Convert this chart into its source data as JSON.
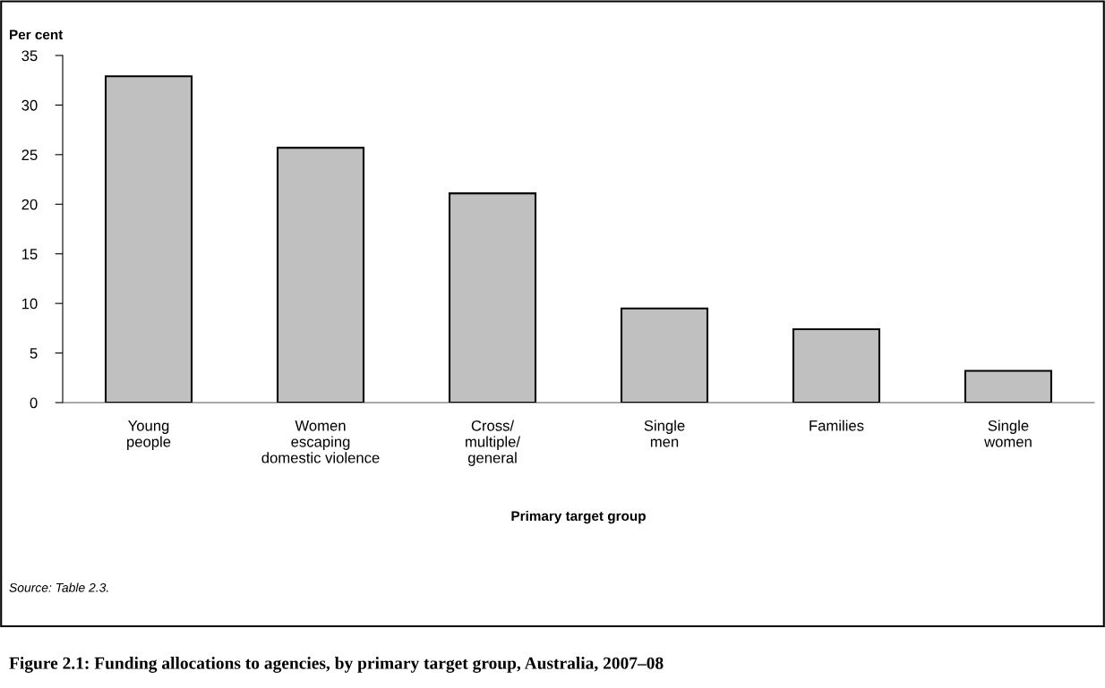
{
  "chart_data": {
    "type": "bar",
    "title": "Figure 2.1: Funding allocations to agencies, by primary target group, Australia, 2007–08",
    "ylabel": "Per cent",
    "xlabel": "Primary target group",
    "categories": [
      "Young\npeople",
      "Women\nescaping\ndomestic violence",
      "Cross/\nmultiple/\ngeneral",
      "Single\nmen",
      "Families",
      "Single\nwomen"
    ],
    "values": [
      32.9,
      25.7,
      21.1,
      9.5,
      7.4,
      3.2
    ],
    "color": "#c0c0c0",
    "ylim": [
      0,
      35
    ],
    "yticks": [
      0,
      5,
      10,
      15,
      20,
      25,
      30,
      35
    ],
    "grid": false,
    "legend": false,
    "annotations": [
      "Source: Table 2.3."
    ]
  }
}
